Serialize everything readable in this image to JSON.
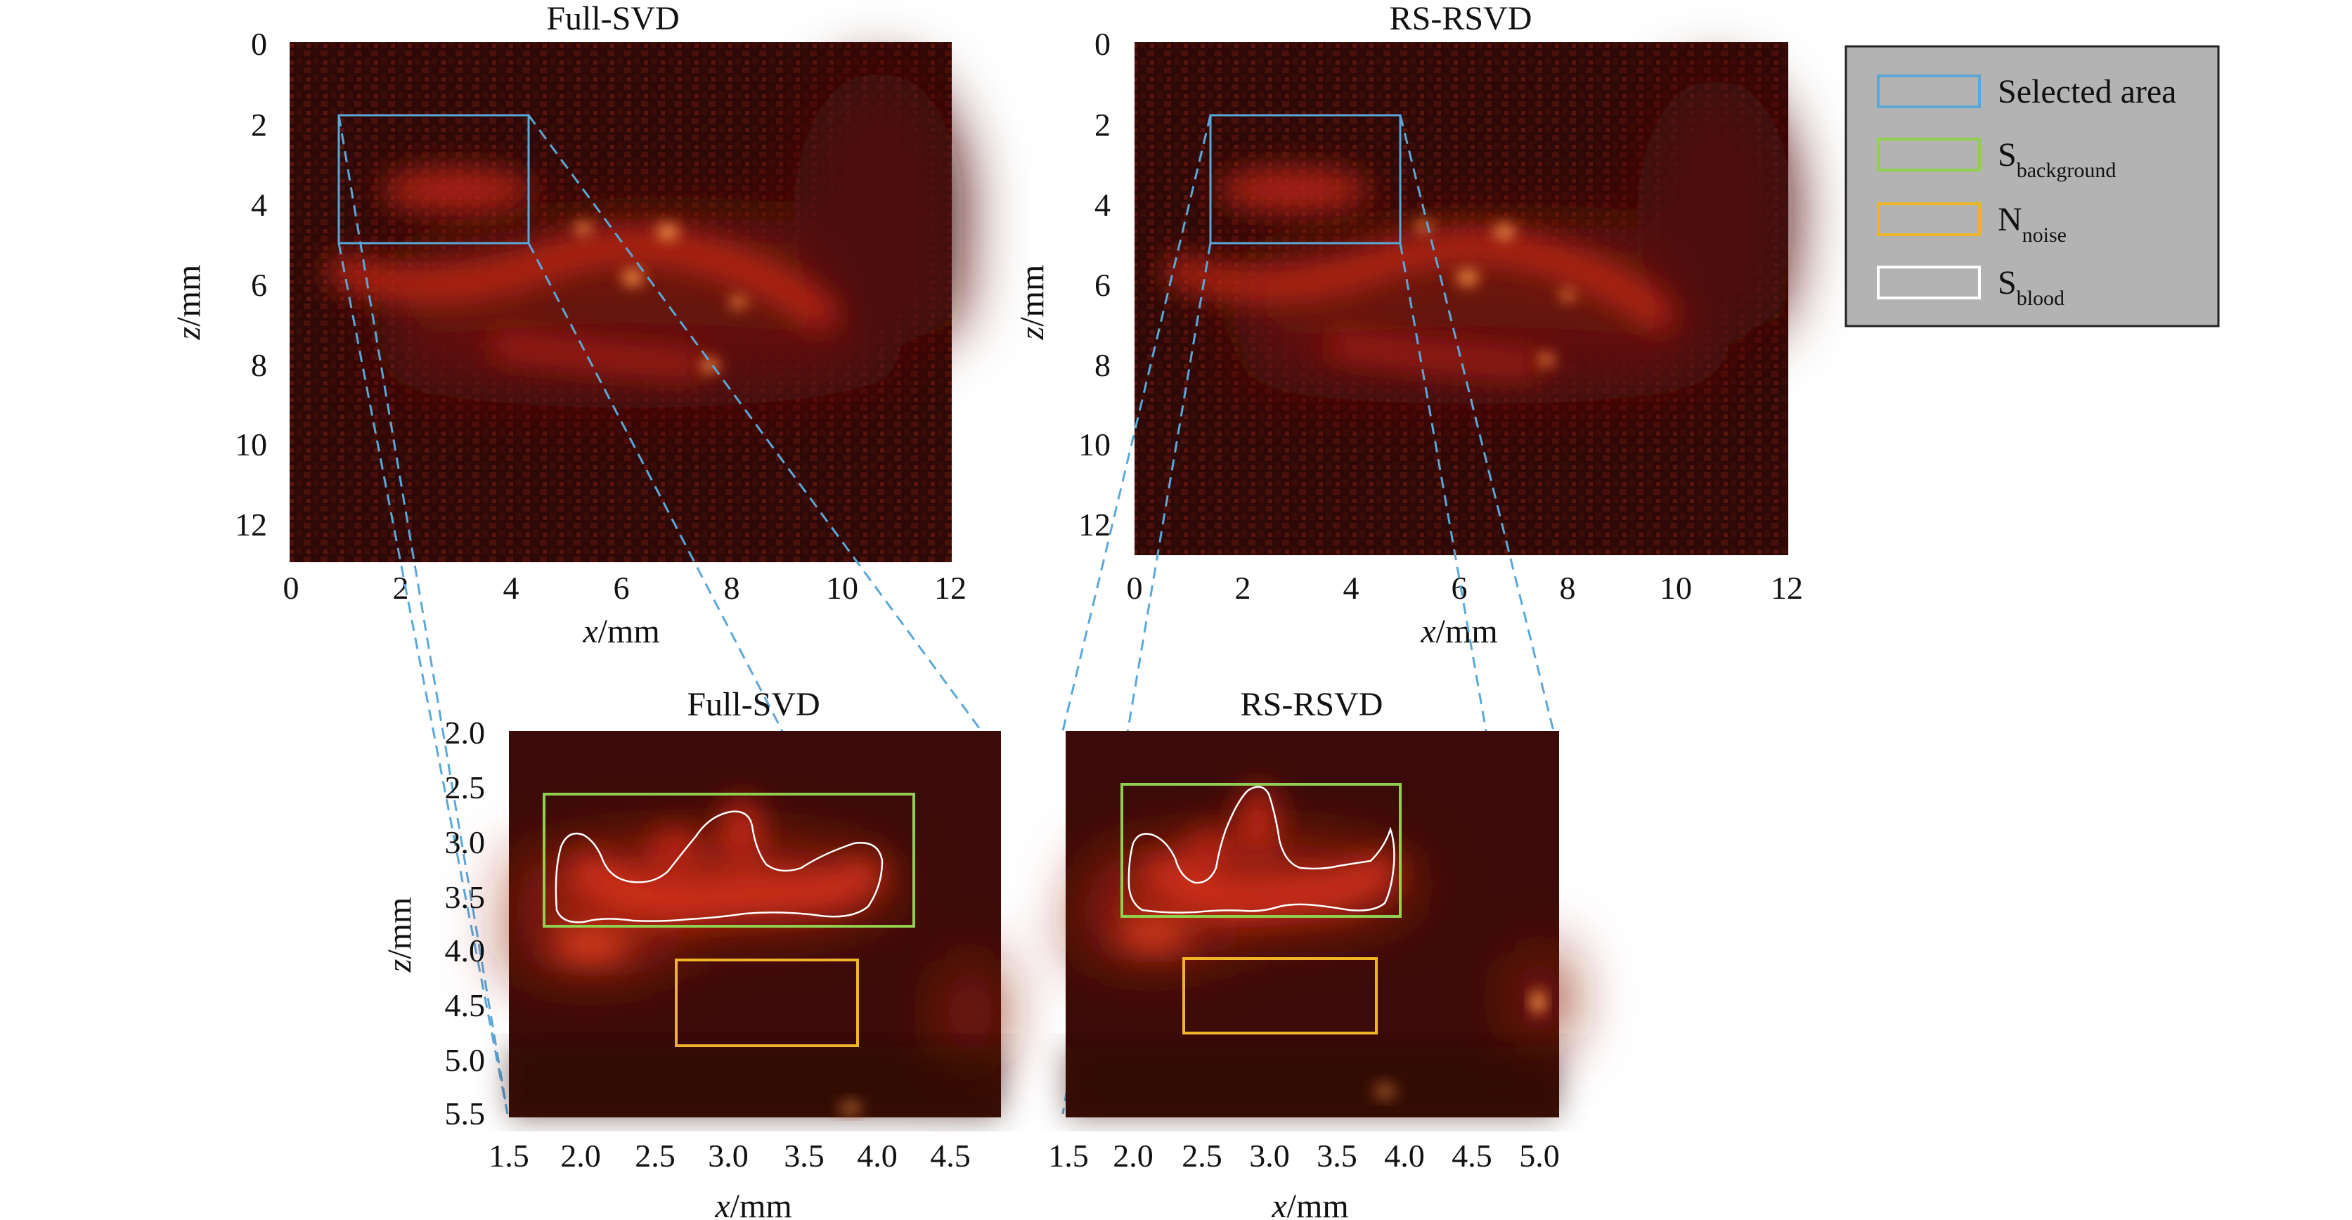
{
  "top_panels": [
    {
      "title": "Full-SVD",
      "xlabel_var": "x",
      "xlabel_unit": "/mm",
      "ylabel_var": "z",
      "ylabel_unit": "/mm",
      "x_ticks": [
        "0",
        "2",
        "4",
        "6",
        "8",
        "10",
        "12"
      ],
      "y_ticks": [
        "0",
        "2",
        "4",
        "6",
        "8",
        "10",
        "12"
      ]
    },
    {
      "title": "RS-RSVD",
      "xlabel_var": "x",
      "xlabel_unit": "/mm",
      "ylabel_var": "z",
      "ylabel_unit": "/mm",
      "x_ticks": [
        "0",
        "2",
        "4",
        "6",
        "8",
        "10",
        "12"
      ],
      "y_ticks": [
        "0",
        "2",
        "4",
        "6",
        "8",
        "10",
        "12"
      ]
    }
  ],
  "bottom_panels": [
    {
      "title": "Full-SVD",
      "xlabel_var": "x",
      "xlabel_unit": "/mm",
      "ylabel_var": "z",
      "ylabel_unit": "/mm",
      "x_ticks": [
        "1.5",
        "2.0",
        "2.5",
        "3.0",
        "3.5",
        "4.0",
        "4.5"
      ],
      "y_ticks": [
        "2.0",
        "2.5",
        "3.0",
        "3.5",
        "4.0",
        "4.5",
        "5.0",
        "5.5"
      ]
    },
    {
      "title": "RS-RSVD",
      "xlabel_var": "x",
      "xlabel_unit": "/mm",
      "x_ticks": [
        "1.5",
        "2.0",
        "2.5",
        "3.0",
        "3.5",
        "4.0",
        "4.5",
        "5.0"
      ]
    }
  ],
  "legend": {
    "items": [
      {
        "label": "Selected area",
        "sub": "",
        "color": "#5aa8d8"
      },
      {
        "label": "S",
        "sub": "background",
        "color": "#8fd14f"
      },
      {
        "label": "N",
        "sub": "noise",
        "color": "#f0b429"
      },
      {
        "label": "S",
        "sub": "blood",
        "color": "#ffffff"
      }
    ],
    "background": "#b3b3b3"
  },
  "colors": {
    "image_dark": "#2a0806",
    "image_mid": "#9c1a10",
    "image_hot": "#ff6a2a",
    "image_peak": "#fff2b0",
    "zoom_line": "#5aa8d8"
  }
}
